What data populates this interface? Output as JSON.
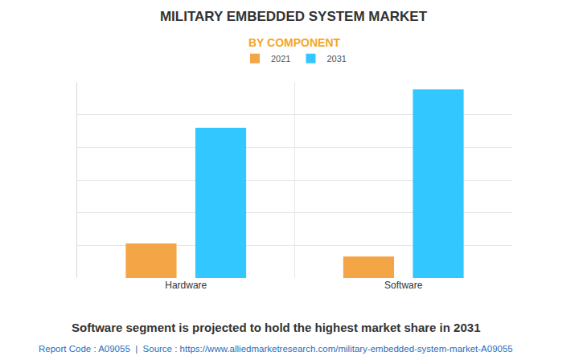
{
  "chart_data": {
    "type": "bar",
    "title": "MILITARY EMBEDDED SYSTEM MARKET",
    "subtitle": "BY COMPONENT",
    "categories": [
      "Hardware",
      "Software"
    ],
    "series": [
      {
        "name": "2021",
        "color": "#f4a545",
        "values": [
          1.06,
          0.66
        ]
      },
      {
        "name": "2031",
        "color": "#33c7ff",
        "values": [
          4.6,
          5.77
        ]
      }
    ],
    "ylim": [
      0,
      6
    ],
    "yticks": [
      0,
      1,
      2,
      3,
      4,
      5,
      6
    ],
    "grid": true,
    "legend": "top",
    "tick_labels": "x",
    "annotations": [
      "Software segment is projected to hold the highest market share in 2031",
      "Report Code : A09055  |  Source : https://www.alliedmarketresearch.com/military-embedded-system-market-A09055"
    ]
  }
}
